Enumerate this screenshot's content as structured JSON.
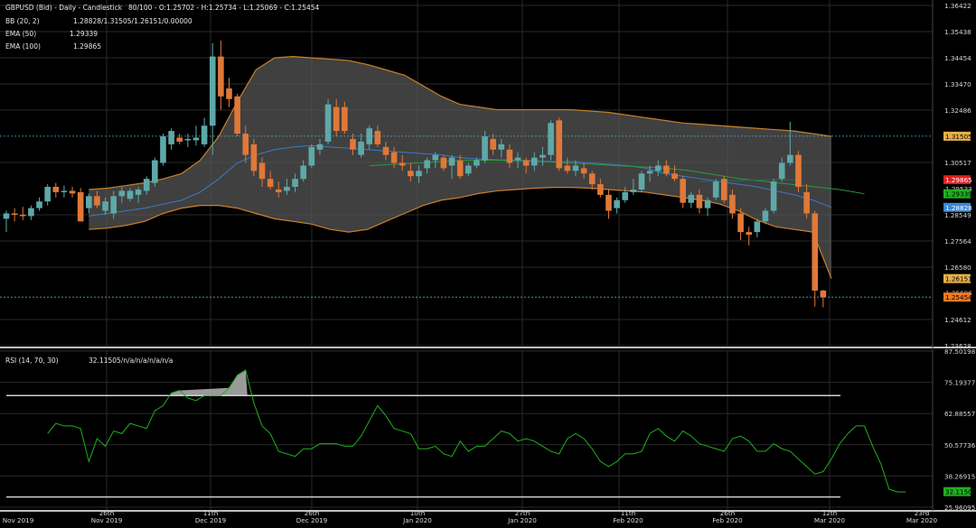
{
  "header": {
    "title": "GBPUSD (Bid) - Daily - Candlestick",
    "quote_info": "80/100 - O:1.25702 - H:1.25734 - L:1.25069 - C:1.25454"
  },
  "indicators": [
    {
      "label": "BB (20, 2)",
      "value": "1.28828/1.31505/1.26151/0.00000"
    },
    {
      "label": "EMA (50)",
      "value": "1.29339"
    },
    {
      "label": "EMA (100)",
      "value": "1.29865"
    }
  ],
  "rsi_header": {
    "label": "RSI (14, 70, 30)",
    "value": "32.11505/n/a/n/a/n/a/n/a"
  },
  "colors": {
    "background": "#000000",
    "grid": "#2a2a2a",
    "bull": "#5fa8a8",
    "bear": "#e07838",
    "bb_fill": "#555555",
    "bb_band": "#c8802a",
    "bb_mid": "#3a7ac8",
    "ema50": "#2a9a3a",
    "ema100": "#1f6d5a",
    "rsi_line": "#1fb01f",
    "rsi_level": "#cfcfcf",
    "axis_text": "#d8d8d8"
  },
  "price_axis": {
    "ticks": [
      "1.36422",
      "1.35438",
      "1.34454",
      "1.33470",
      "1.32486",
      "1.30517",
      "1.28549",
      "1.27564",
      "1.26580",
      "1.24612",
      "1.23628"
    ]
  },
  "price_badges": [
    {
      "text": "1.31505",
      "bg": "#e6b04a",
      "fg": "#000000"
    },
    {
      "text": "1.29865",
      "bg": "#e02020",
      "fg": "#ffffff"
    },
    {
      "text": "1.29533",
      "bg": "#000000",
      "fg": "#cfcfcf"
    },
    {
      "text": "1.29339",
      "bg": "#1fb01f",
      "fg": "#000000"
    },
    {
      "text": "1.28828",
      "bg": "#3a88d8",
      "fg": "#ffffff"
    },
    {
      "text": "1.26151",
      "bg": "#e6b04a",
      "fg": "#000000"
    },
    {
      "text": "1.25606",
      "bg": "#000000",
      "fg": "#cfcfcf"
    },
    {
      "text": "1.25454",
      "bg": "#f07a20",
      "fg": "#000000"
    }
  ],
  "rsi_axis": {
    "ticks": [
      "87.50198",
      "75.19377",
      "62.88557",
      "50.57736",
      "38.26915",
      "25.96095"
    ]
  },
  "rsi_badge": {
    "text": "32.11505",
    "bg": "#1fb01f",
    "fg": "#000000"
  },
  "x_axis": {
    "labels": [
      {
        "day": "",
        "month": "Nov 2019"
      },
      {
        "day": "26th",
        "month": "Nov 2019"
      },
      {
        "day": "11th",
        "month": "Dec 2019"
      },
      {
        "day": "26th",
        "month": "Dec 2019"
      },
      {
        "day": "10th",
        "month": "Jan 2020"
      },
      {
        "day": "27th",
        "month": "Jan 2020"
      },
      {
        "day": "11th",
        "month": "Feb 2020"
      },
      {
        "day": "26th",
        "month": "Feb 2020"
      },
      {
        "day": "12th",
        "month": "Mar 2020"
      },
      {
        "day": "23rd",
        "month": "Mar 2020"
      }
    ]
  },
  "chart_data": {
    "type": "candlestick",
    "title": "GBPUSD (Bid) - Daily - Candlestick",
    "ylim": [
      1.23628,
      1.36422
    ],
    "rsi_ylim": [
      25.96095,
      87.50198
    ],
    "rsi_levels": [
      70,
      30
    ],
    "grid": true,
    "candles": [
      {
        "o": 1.284,
        "h": 1.287,
        "l": 1.279,
        "c": 1.286
      },
      {
        "o": 1.286,
        "h": 1.288,
        "l": 1.283,
        "c": 1.2855
      },
      {
        "o": 1.2855,
        "h": 1.2885,
        "l": 1.2835,
        "c": 1.285
      },
      {
        "o": 1.285,
        "h": 1.289,
        "l": 1.2835,
        "c": 1.288
      },
      {
        "o": 1.288,
        "h": 1.292,
        "l": 1.287,
        "c": 1.2905
      },
      {
        "o": 1.2905,
        "h": 1.297,
        "l": 1.289,
        "c": 1.296
      },
      {
        "o": 1.296,
        "h": 1.2975,
        "l": 1.292,
        "c": 1.294
      },
      {
        "o": 1.294,
        "h": 1.2965,
        "l": 1.292,
        "c": 1.2945
      },
      {
        "o": 1.2945,
        "h": 1.296,
        "l": 1.292,
        "c": 1.2935
      },
      {
        "o": 1.294,
        "h": 1.2955,
        "l": 1.283,
        "c": 1.283
      },
      {
        "o": 1.288,
        "h": 1.2935,
        "l": 1.286,
        "c": 1.2925
      },
      {
        "o": 1.2925,
        "h": 1.2945,
        "l": 1.288,
        "c": 1.289
      },
      {
        "o": 1.287,
        "h": 1.292,
        "l": 1.2855,
        "c": 1.2905
      },
      {
        "o": 1.286,
        "h": 1.2945,
        "l": 1.284,
        "c": 1.2925
      },
      {
        "o": 1.2925,
        "h": 1.296,
        "l": 1.29,
        "c": 1.2945
      },
      {
        "o": 1.2915,
        "h": 1.2955,
        "l": 1.2905,
        "c": 1.2945
      },
      {
        "o": 1.293,
        "h": 1.296,
        "l": 1.29,
        "c": 1.295
      },
      {
        "o": 1.2945,
        "h": 1.3,
        "l": 1.293,
        "c": 1.299
      },
      {
        "o": 1.2975,
        "h": 1.307,
        "l": 1.296,
        "c": 1.306
      },
      {
        "o": 1.305,
        "h": 1.316,
        "l": 1.304,
        "c": 1.315
      },
      {
        "o": 1.312,
        "h": 1.318,
        "l": 1.31,
        "c": 1.317
      },
      {
        "o": 1.3145,
        "h": 1.316,
        "l": 1.312,
        "c": 1.313
      },
      {
        "o": 1.3135,
        "h": 1.316,
        "l": 1.311,
        "c": 1.314
      },
      {
        "o": 1.3135,
        "h": 1.319,
        "l": 1.3115,
        "c": 1.3145
      },
      {
        "o": 1.312,
        "h": 1.322,
        "l": 1.311,
        "c": 1.319
      },
      {
        "o": 1.319,
        "h": 1.35,
        "l": 1.308,
        "c": 1.345
      },
      {
        "o": 1.345,
        "h": 1.351,
        "l": 1.325,
        "c": 1.33
      },
      {
        "o": 1.333,
        "h": 1.337,
        "l": 1.326,
        "c": 1.329
      },
      {
        "o": 1.33,
        "h": 1.331,
        "l": 1.315,
        "c": 1.316
      },
      {
        "o": 1.316,
        "h": 1.319,
        "l": 1.305,
        "c": 1.308
      },
      {
        "o": 1.312,
        "h": 1.314,
        "l": 1.3,
        "c": 1.302
      },
      {
        "o": 1.305,
        "h": 1.307,
        "l": 1.296,
        "c": 1.299
      },
      {
        "o": 1.299,
        "h": 1.302,
        "l": 1.295,
        "c": 1.296
      },
      {
        "o": 1.295,
        "h": 1.298,
        "l": 1.292,
        "c": 1.294
      },
      {
        "o": 1.2945,
        "h": 1.299,
        "l": 1.293,
        "c": 1.296
      },
      {
        "o": 1.296,
        "h": 1.301,
        "l": 1.294,
        "c": 1.299
      },
      {
        "o": 1.299,
        "h": 1.306,
        "l": 1.298,
        "c": 1.304
      },
      {
        "o": 1.304,
        "h": 1.312,
        "l": 1.303,
        "c": 1.311
      },
      {
        "o": 1.31,
        "h": 1.314,
        "l": 1.308,
        "c": 1.312
      },
      {
        "o": 1.313,
        "h": 1.329,
        "l": 1.312,
        "c": 1.327
      },
      {
        "o": 1.326,
        "h": 1.329,
        "l": 1.315,
        "c": 1.317
      },
      {
        "o": 1.326,
        "h": 1.328,
        "l": 1.316,
        "c": 1.317
      },
      {
        "o": 1.314,
        "h": 1.316,
        "l": 1.308,
        "c": 1.31
      },
      {
        "o": 1.308,
        "h": 1.316,
        "l": 1.307,
        "c": 1.313
      },
      {
        "o": 1.312,
        "h": 1.319,
        "l": 1.31,
        "c": 1.318
      },
      {
        "o": 1.317,
        "h": 1.319,
        "l": 1.311,
        "c": 1.312
      },
      {
        "o": 1.311,
        "h": 1.313,
        "l": 1.306,
        "c": 1.308
      },
      {
        "o": 1.309,
        "h": 1.311,
        "l": 1.303,
        "c": 1.305
      },
      {
        "o": 1.305,
        "h": 1.308,
        "l": 1.302,
        "c": 1.304
      },
      {
        "o": 1.302,
        "h": 1.305,
        "l": 1.298,
        "c": 1.3
      },
      {
        "o": 1.3,
        "h": 1.304,
        "l": 1.2975,
        "c": 1.302
      },
      {
        "o": 1.303,
        "h": 1.307,
        "l": 1.301,
        "c": 1.306
      },
      {
        "o": 1.306,
        "h": 1.309,
        "l": 1.303,
        "c": 1.308
      },
      {
        "o": 1.307,
        "h": 1.308,
        "l": 1.302,
        "c": 1.303
      },
      {
        "o": 1.304,
        "h": 1.308,
        "l": 1.299,
        "c": 1.307
      },
      {
        "o": 1.306,
        "h": 1.308,
        "l": 1.299,
        "c": 1.3
      },
      {
        "o": 1.301,
        "h": 1.305,
        "l": 1.3,
        "c": 1.304
      },
      {
        "o": 1.304,
        "h": 1.307,
        "l": 1.303,
        "c": 1.306
      },
      {
        "o": 1.306,
        "h": 1.317,
        "l": 1.305,
        "c": 1.315
      },
      {
        "o": 1.314,
        "h": 1.316,
        "l": 1.308,
        "c": 1.31
      },
      {
        "o": 1.31,
        "h": 1.314,
        "l": 1.307,
        "c": 1.312
      },
      {
        "o": 1.31,
        "h": 1.312,
        "l": 1.303,
        "c": 1.305
      },
      {
        "o": 1.306,
        "h": 1.309,
        "l": 1.303,
        "c": 1.307
      },
      {
        "o": 1.306,
        "h": 1.307,
        "l": 1.301,
        "c": 1.304
      },
      {
        "o": 1.304,
        "h": 1.309,
        "l": 1.302,
        "c": 1.307
      },
      {
        "o": 1.307,
        "h": 1.311,
        "l": 1.304,
        "c": 1.308
      },
      {
        "o": 1.308,
        "h": 1.321,
        "l": 1.306,
        "c": 1.32
      },
      {
        "o": 1.321,
        "h": 1.322,
        "l": 1.302,
        "c": 1.303
      },
      {
        "o": 1.304,
        "h": 1.307,
        "l": 1.301,
        "c": 1.302
      },
      {
        "o": 1.302,
        "h": 1.306,
        "l": 1.3,
        "c": 1.304
      },
      {
        "o": 1.303,
        "h": 1.305,
        "l": 1.299,
        "c": 1.301
      },
      {
        "o": 1.301,
        "h": 1.302,
        "l": 1.295,
        "c": 1.297
      },
      {
        "o": 1.297,
        "h": 1.299,
        "l": 1.292,
        "c": 1.293
      },
      {
        "o": 1.293,
        "h": 1.295,
        "l": 1.284,
        "c": 1.287
      },
      {
        "o": 1.288,
        "h": 1.292,
        "l": 1.286,
        "c": 1.291
      },
      {
        "o": 1.291,
        "h": 1.296,
        "l": 1.29,
        "c": 1.294
      },
      {
        "o": 1.294,
        "h": 1.299,
        "l": 1.293,
        "c": 1.295
      },
      {
        "o": 1.295,
        "h": 1.302,
        "l": 1.294,
        "c": 1.301
      },
      {
        "o": 1.301,
        "h": 1.304,
        "l": 1.298,
        "c": 1.302
      },
      {
        "o": 1.302,
        "h": 1.306,
        "l": 1.3,
        "c": 1.304
      },
      {
        "o": 1.304,
        "h": 1.306,
        "l": 1.3,
        "c": 1.301
      },
      {
        "o": 1.301,
        "h": 1.304,
        "l": 1.298,
        "c": 1.299
      },
      {
        "o": 1.299,
        "h": 1.3,
        "l": 1.288,
        "c": 1.29
      },
      {
        "o": 1.29,
        "h": 1.294,
        "l": 1.288,
        "c": 1.293
      },
      {
        "o": 1.293,
        "h": 1.295,
        "l": 1.286,
        "c": 1.288
      },
      {
        "o": 1.288,
        "h": 1.292,
        "l": 1.285,
        "c": 1.291
      },
      {
        "o": 1.292,
        "h": 1.299,
        "l": 1.291,
        "c": 1.298
      },
      {
        "o": 1.299,
        "h": 1.3,
        "l": 1.29,
        "c": 1.291
      },
      {
        "o": 1.293,
        "h": 1.295,
        "l": 1.284,
        "c": 1.286
      },
      {
        "o": 1.286,
        "h": 1.288,
        "l": 1.276,
        "c": 1.279
      },
      {
        "o": 1.279,
        "h": 1.281,
        "l": 1.274,
        "c": 1.278
      },
      {
        "o": 1.279,
        "h": 1.284,
        "l": 1.277,
        "c": 1.283
      },
      {
        "o": 1.283,
        "h": 1.288,
        "l": 1.282,
        "c": 1.287
      },
      {
        "o": 1.287,
        "h": 1.299,
        "l": 1.286,
        "c": 1.298
      },
      {
        "o": 1.299,
        "h": 1.307,
        "l": 1.298,
        "c": 1.305
      },
      {
        "o": 1.305,
        "h": 1.3205,
        "l": 1.304,
        "c": 1.308
      },
      {
        "o": 1.308,
        "h": 1.3095,
        "l": 1.294,
        "c": 1.296
      },
      {
        "o": 1.294,
        "h": 1.297,
        "l": 1.284,
        "c": 1.286
      },
      {
        "o": 1.286,
        "h": 1.287,
        "l": 1.251,
        "c": 1.257
      },
      {
        "o": 1.257,
        "h": 1.2573,
        "l": 1.2507,
        "c": 1.2545
      }
    ],
    "bollinger": {
      "upper": [
        1.295,
        1.2955,
        1.2965,
        1.2975,
        1.299,
        1.301,
        1.306,
        1.315,
        1.328,
        1.34,
        1.3445,
        1.345,
        1.3445,
        1.344,
        1.3435,
        1.342,
        1.34,
        1.338,
        1.334,
        1.33,
        1.327,
        1.326,
        1.325,
        1.325,
        1.325,
        1.325,
        1.325,
        1.3245,
        1.324,
        1.323,
        1.322,
        1.321,
        1.32,
        1.3195,
        1.319,
        1.3185,
        1.318,
        1.3175,
        1.317,
        1.316,
        1.315
      ],
      "lower": [
        1.28,
        1.2805,
        1.2815,
        1.283,
        1.286,
        1.288,
        1.289,
        1.289,
        1.288,
        1.286,
        1.284,
        1.283,
        1.282,
        1.28,
        1.279,
        1.28,
        1.283,
        1.286,
        1.289,
        1.291,
        1.292,
        1.2935,
        1.2945,
        1.295,
        1.2955,
        1.2958,
        1.2958,
        1.2955,
        1.295,
        1.2945,
        1.294,
        1.293,
        1.292,
        1.291,
        1.2895,
        1.287,
        1.2835,
        1.281,
        1.28,
        1.279,
        1.2615
      ]
    },
    "bb_mid": [
      1.285,
      1.286,
      1.287,
      1.288,
      1.2895,
      1.291,
      1.294,
      1.299,
      1.305,
      1.308,
      1.31,
      1.311,
      1.3115,
      1.311,
      1.3105,
      1.31,
      1.3095,
      1.309,
      1.3085,
      1.308,
      1.307,
      1.3065,
      1.3062,
      1.306,
      1.3058,
      1.3055,
      1.3055,
      1.305,
      1.3045,
      1.304,
      1.303,
      1.301,
      1.3,
      1.299,
      1.298,
      1.297,
      1.296,
      1.2945,
      1.293,
      1.291,
      1.2883
    ],
    "ema50": [
      1.304,
      1.3045,
      1.305,
      1.3055,
      1.306,
      1.306,
      1.3058,
      1.3055,
      1.305,
      1.3045,
      1.304,
      1.3035,
      1.303,
      1.302,
      1.3005,
      1.299,
      1.298,
      1.297,
      1.296,
      1.295,
      1.2934
    ],
    "ema100": [
      1.298,
      1.2982,
      1.2985,
      1.2987,
      1.2987
    ],
    "rsi": [
      55,
      59,
      58,
      58,
      57,
      44,
      53,
      50,
      56,
      55,
      59,
      58,
      57,
      64,
      66,
      71,
      72,
      69,
      68,
      70,
      70,
      70,
      73,
      78,
      80,
      67,
      58,
      55,
      48,
      47,
      46,
      49,
      49,
      51,
      51,
      51,
      50,
      50,
      54,
      60,
      66,
      62,
      57,
      56,
      55,
      49,
      49,
      50,
      47,
      46,
      52,
      48,
      50,
      50,
      53,
      56,
      55,
      52,
      53,
      52,
      50,
      48,
      47,
      53,
      55,
      53,
      49,
      44,
      42,
      44,
      47,
      47,
      48,
      55,
      57,
      54,
      52,
      56,
      54,
      51,
      50,
      49,
      48,
      53,
      54,
      52,
      48,
      48,
      51,
      49,
      48,
      45,
      42,
      39,
      40,
      45,
      51,
      55,
      58,
      58,
      50,
      43,
      33,
      32,
      32
    ]
  }
}
